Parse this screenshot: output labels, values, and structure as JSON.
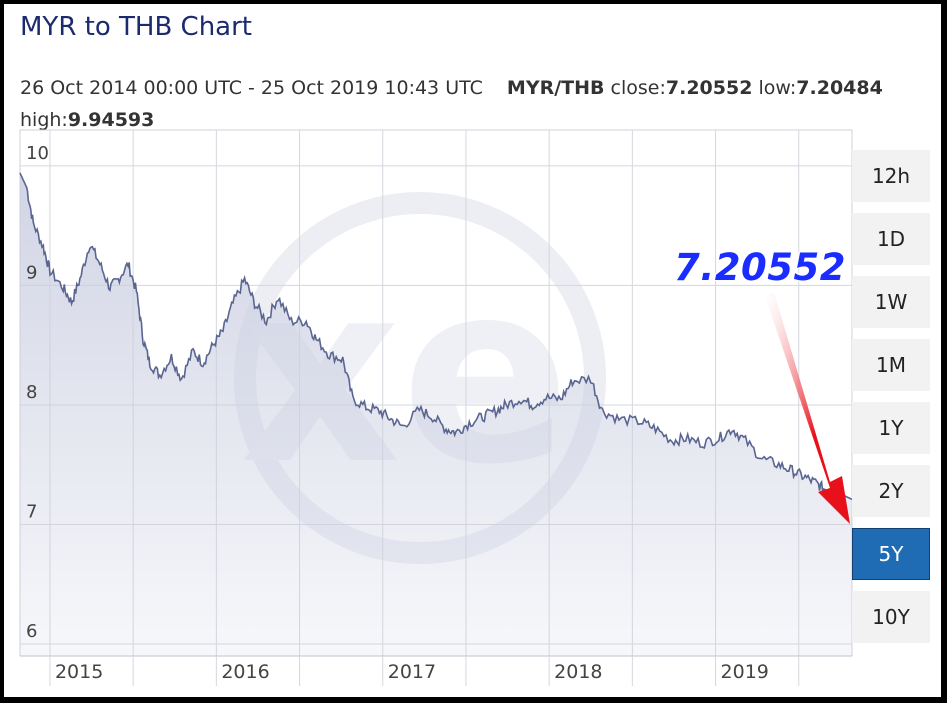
{
  "title": "MYR to THB Chart",
  "info": {
    "date_range": "26 Oct 2014 00:00 UTC - 25 Oct 2019 10:43 UTC",
    "pair": "MYR/THB",
    "close_label": "close:",
    "close_value": "7.20552",
    "low_label": "low:",
    "low_value": "7.20484",
    "high_label": "high:",
    "high_value": "9.94593"
  },
  "range_buttons": [
    {
      "label": "12h",
      "active": false
    },
    {
      "label": "1D",
      "active": false
    },
    {
      "label": "1W",
      "active": false
    },
    {
      "label": "1M",
      "active": false
    },
    {
      "label": "1Y",
      "active": false
    },
    {
      "label": "2Y",
      "active": false
    },
    {
      "label": "5Y",
      "active": true
    },
    {
      "label": "10Y",
      "active": false
    }
  ],
  "callout": {
    "text": "7.20552",
    "color": "#1a2cff",
    "arrow_color": "#e8101a",
    "arrow_icon": "arrow-down-right-icon"
  },
  "chart_data": {
    "type": "area",
    "title": "MYR to THB Chart",
    "xlabel": "",
    "ylabel": "",
    "xlim": [
      2014.82,
      2019.82
    ],
    "ylim": [
      5.9,
      10.3
    ],
    "y_ticks": [
      10,
      9,
      8,
      7,
      6
    ],
    "x_ticks": [
      2015,
      2016,
      2017,
      2018,
      2019
    ],
    "grid": true,
    "colors": {
      "line": "#5a6590",
      "fill": "#c9cde0",
      "grid": "#d5d7dd"
    },
    "watermark": "xe",
    "series": [
      {
        "values": [
          {
            "x": 2014.82,
            "y": 9.94
          },
          {
            "x": 2014.86,
            "y": 9.82
          },
          {
            "x": 2014.9,
            "y": 9.52
          },
          {
            "x": 2014.96,
            "y": 9.32
          },
          {
            "x": 2015.0,
            "y": 9.12
          },
          {
            "x": 2015.08,
            "y": 8.98
          },
          {
            "x": 2015.13,
            "y": 8.86
          },
          {
            "x": 2015.18,
            "y": 9.05
          },
          {
            "x": 2015.24,
            "y": 9.35
          },
          {
            "x": 2015.3,
            "y": 9.18
          },
          {
            "x": 2015.36,
            "y": 8.98
          },
          {
            "x": 2015.41,
            "y": 9.05
          },
          {
            "x": 2015.47,
            "y": 9.18
          },
          {
            "x": 2015.52,
            "y": 8.95
          },
          {
            "x": 2015.56,
            "y": 8.55
          },
          {
            "x": 2015.6,
            "y": 8.35
          },
          {
            "x": 2015.66,
            "y": 8.25
          },
          {
            "x": 2015.73,
            "y": 8.4
          },
          {
            "x": 2015.79,
            "y": 8.22
          },
          {
            "x": 2015.86,
            "y": 8.45
          },
          {
            "x": 2015.92,
            "y": 8.35
          },
          {
            "x": 2015.98,
            "y": 8.5
          },
          {
            "x": 2016.04,
            "y": 8.62
          },
          {
            "x": 2016.1,
            "y": 8.85
          },
          {
            "x": 2016.17,
            "y": 9.05
          },
          {
            "x": 2016.23,
            "y": 8.85
          },
          {
            "x": 2016.3,
            "y": 8.7
          },
          {
            "x": 2016.37,
            "y": 8.9
          },
          {
            "x": 2016.45,
            "y": 8.7
          },
          {
            "x": 2016.54,
            "y": 8.7
          },
          {
            "x": 2016.6,
            "y": 8.55
          },
          {
            "x": 2016.68,
            "y": 8.42
          },
          {
            "x": 2016.76,
            "y": 8.38
          },
          {
            "x": 2016.82,
            "y": 8.05
          },
          {
            "x": 2016.9,
            "y": 7.98
          },
          {
            "x": 2016.98,
            "y": 7.95
          },
          {
            "x": 2017.05,
            "y": 7.88
          },
          {
            "x": 2017.12,
            "y": 7.82
          },
          {
            "x": 2017.22,
            "y": 7.96
          },
          {
            "x": 2017.3,
            "y": 7.9
          },
          {
            "x": 2017.38,
            "y": 7.8
          },
          {
            "x": 2017.44,
            "y": 7.77
          },
          {
            "x": 2017.52,
            "y": 7.85
          },
          {
            "x": 2017.6,
            "y": 7.9
          },
          {
            "x": 2017.68,
            "y": 7.95
          },
          {
            "x": 2017.74,
            "y": 8.0
          },
          {
            "x": 2017.83,
            "y": 8.05
          },
          {
            "x": 2017.9,
            "y": 8.0
          },
          {
            "x": 2017.98,
            "y": 8.06
          },
          {
            "x": 2018.07,
            "y": 8.05
          },
          {
            "x": 2018.14,
            "y": 8.2
          },
          {
            "x": 2018.25,
            "y": 8.22
          },
          {
            "x": 2018.32,
            "y": 7.95
          },
          {
            "x": 2018.42,
            "y": 7.88
          },
          {
            "x": 2018.55,
            "y": 7.86
          },
          {
            "x": 2018.64,
            "y": 7.8
          },
          {
            "x": 2018.74,
            "y": 7.7
          },
          {
            "x": 2018.82,
            "y": 7.72
          },
          {
            "x": 2018.92,
            "y": 7.68
          },
          {
            "x": 2019.02,
            "y": 7.72
          },
          {
            "x": 2019.1,
            "y": 7.8
          },
          {
            "x": 2019.18,
            "y": 7.7
          },
          {
            "x": 2019.28,
            "y": 7.55
          },
          {
            "x": 2019.38,
            "y": 7.5
          },
          {
            "x": 2019.46,
            "y": 7.45
          },
          {
            "x": 2019.53,
            "y": 7.4
          },
          {
            "x": 2019.6,
            "y": 7.35
          },
          {
            "x": 2019.65,
            "y": 7.3
          },
          {
            "x": 2019.72,
            "y": 7.28
          },
          {
            "x": 2019.76,
            "y": 7.25
          },
          {
            "x": 2019.82,
            "y": 7.21
          }
        ]
      }
    ]
  }
}
